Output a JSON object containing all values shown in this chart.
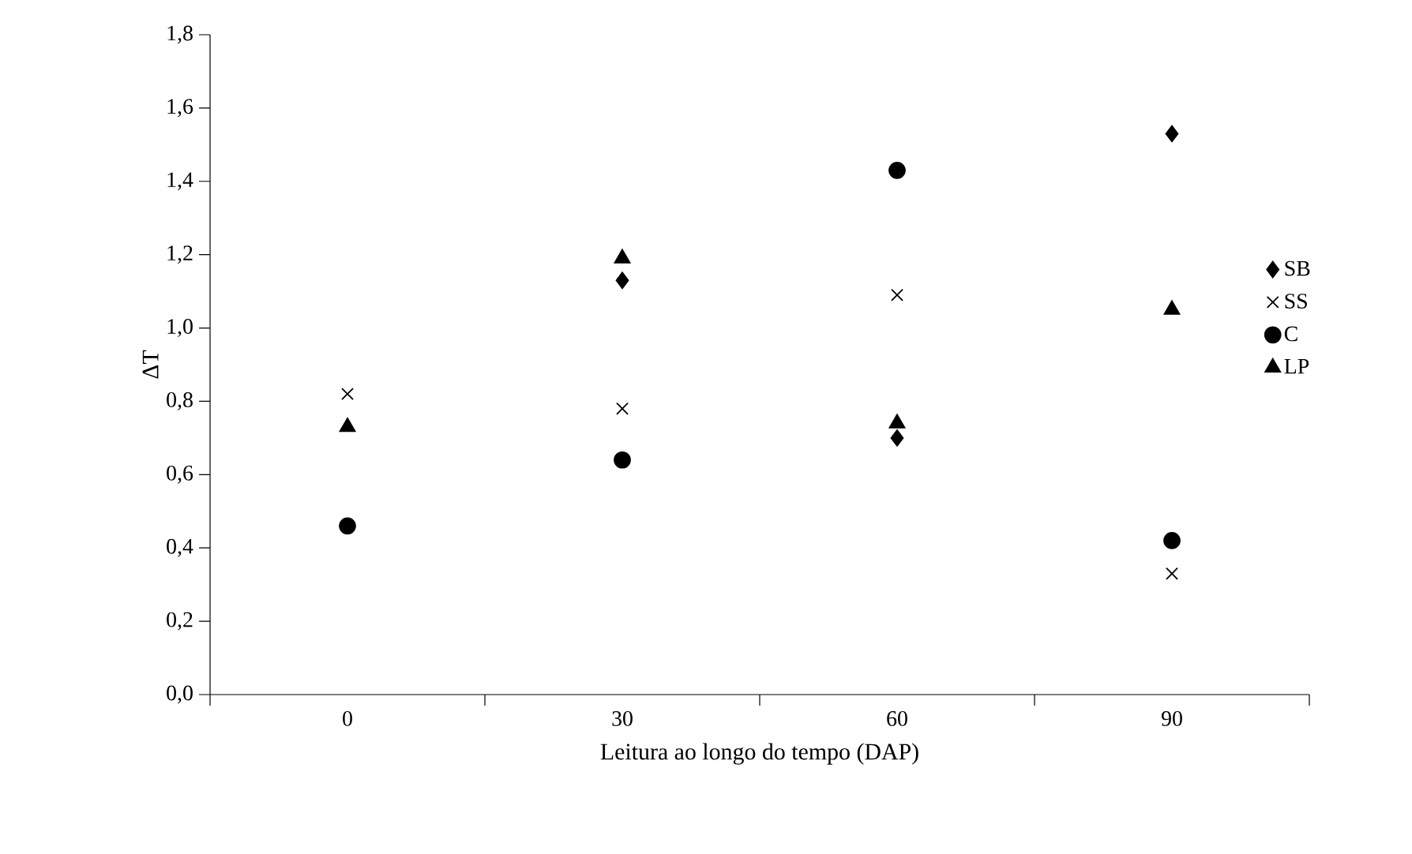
{
  "chart_data": {
    "type": "scatter",
    "xlabel": "Leitura ao longo do tempo (DAP)",
    "ylabel": "ΔT",
    "categories": [
      "0",
      "30",
      "60",
      "90"
    ],
    "ylim": [
      0,
      1.8
    ],
    "yticks": [
      {
        "value": 0,
        "label": "0,0"
      },
      {
        "value": 0.2,
        "label": "0,2"
      },
      {
        "value": 0.4,
        "label": "0,4"
      },
      {
        "value": 0.6,
        "label": "0,6"
      },
      {
        "value": 0.8,
        "label": "0,8"
      },
      {
        "value": 1.0,
        "label": "1,0"
      },
      {
        "value": 1.2,
        "label": "1,2"
      },
      {
        "value": 1.4,
        "label": "1,4"
      },
      {
        "value": 1.6,
        "label": "1,6"
      },
      {
        "value": 1.8,
        "label": "1,8"
      }
    ],
    "legend": "right",
    "grid": false,
    "series": [
      {
        "name": "SB",
        "color": "#000000",
        "marker": "diamond",
        "values": [
          null,
          1.13,
          0.7,
          1.53
        ]
      },
      {
        "name": "SS",
        "color": "#000000",
        "marker": "cross",
        "values": [
          0.82,
          0.78,
          1.09,
          0.33
        ]
      },
      {
        "name": "C",
        "color": "#000000",
        "marker": "circle",
        "values": [
          0.46,
          0.64,
          1.43,
          0.42
        ]
      },
      {
        "name": "LP",
        "color": "#000000",
        "marker": "triangle",
        "values": [
          0.73,
          1.19,
          0.74,
          1.05
        ]
      }
    ]
  }
}
